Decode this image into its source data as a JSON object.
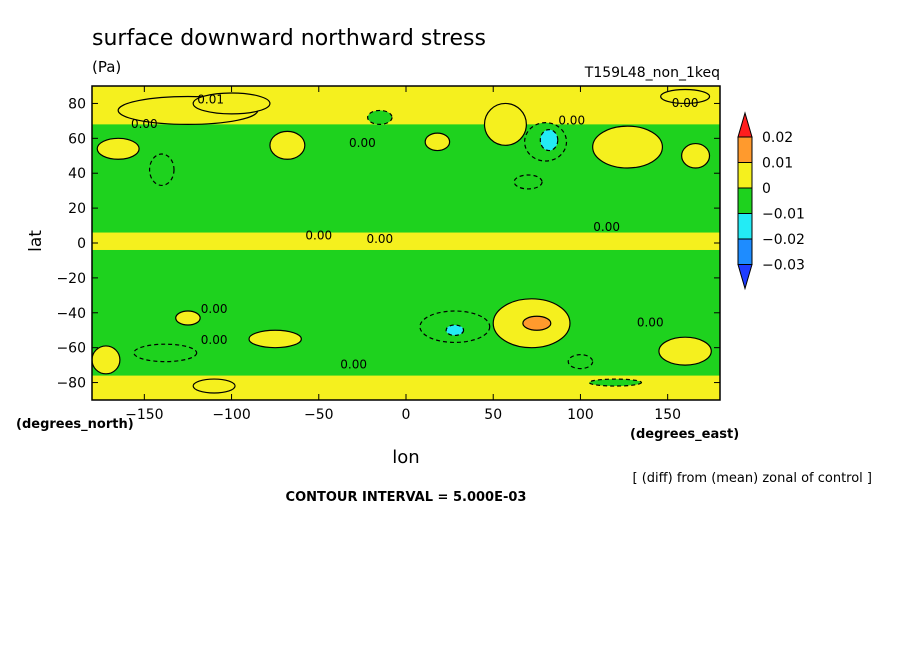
{
  "chart_data": {
    "type": "heatmap",
    "title": "surface downward northward stress",
    "units": "(Pa)",
    "run_label": "T159L48_non_1keq",
    "xlabel": "lon",
    "ylabel": "lat",
    "x_units": "(degrees_east)",
    "y_units": "(degrees_north)",
    "xlim": [
      -180,
      180
    ],
    "ylim": [
      -90,
      90
    ],
    "x_ticks": [
      -150,
      -100,
      -50,
      0,
      50,
      100,
      150
    ],
    "x_tick_labels": [
      "−150",
      "−100",
      "−50",
      "0",
      "50",
      "100",
      "150"
    ],
    "y_ticks": [
      80,
      60,
      40,
      20,
      0,
      -20,
      -40,
      -60,
      -80
    ],
    "y_tick_labels": [
      "80",
      "60",
      "40",
      "20",
      "0",
      "−20",
      "−40",
      "−60",
      "−80"
    ],
    "note": "[ (diff) from (mean) zonal of control ]",
    "contour_interval": "CONTOUR INTERVAL = 5.000E-03",
    "colorbar": {
      "levels": [
        "0.02",
        "0.01",
        "0",
        "−0.01",
        "−0.02",
        "−0.03"
      ],
      "colors": [
        "#ff1e1e",
        "#ff9a2d",
        "#f5f01e",
        "#1ed21e",
        "#23ebf5",
        "#1e8cff",
        "#1e3cff"
      ]
    },
    "contour_labels": [
      {
        "text": "0.01",
        "lon": -112,
        "lat": 80
      },
      {
        "text": "0.00",
        "lon": -150,
        "lat": 66
      },
      {
        "text": "0.00",
        "lon": -25,
        "lat": 55
      },
      {
        "text": "0.00",
        "lon": 95,
        "lat": 68
      },
      {
        "text": "0.00",
        "lon": 160,
        "lat": 78
      },
      {
        "text": "0.00",
        "lon": -50,
        "lat": 2
      },
      {
        "text": "0.00",
        "lon": -15,
        "lat": 0
      },
      {
        "text": "0.00",
        "lon": 115,
        "lat": 7
      },
      {
        "text": "0.00",
        "lon": -110,
        "lat": -40
      },
      {
        "text": "0.00",
        "lon": -110,
        "lat": -58
      },
      {
        "text": "0.00",
        "lon": -30,
        "lat": -72
      },
      {
        "text": "0.00",
        "lon": 140,
        "lat": -48
      }
    ],
    "regions": [
      {
        "value": 0.005,
        "lon": -125,
        "lat": 76,
        "rlon": 40,
        "rlat": 8
      },
      {
        "value": 0.005,
        "lon": -100,
        "lat": 80,
        "rlon": 22,
        "rlat": 6
      },
      {
        "value": 0.005,
        "lon": -165,
        "lat": 54,
        "rlon": 12,
        "rlat": 6
      },
      {
        "value": 0.005,
        "lon": -68,
        "lat": 56,
        "rlon": 10,
        "rlat": 8
      },
      {
        "value": 0.005,
        "lon": 18,
        "lat": 58,
        "rlon": 7,
        "rlat": 5
      },
      {
        "value": 0.005,
        "lon": 57,
        "lat": 68,
        "rlon": 12,
        "rlat": 12
      },
      {
        "value": 0.005,
        "lon": 127,
        "lat": 55,
        "rlon": 20,
        "rlat": 12
      },
      {
        "value": 0.005,
        "lon": 166,
        "lat": 50,
        "rlon": 8,
        "rlat": 7
      },
      {
        "value": 0.005,
        "lon": 160,
        "lat": 84,
        "rlon": 14,
        "rlat": 4
      },
      {
        "value": 0.005,
        "lon": -172,
        "lat": -67,
        "rlon": 8,
        "rlat": 8
      },
      {
        "value": 0.005,
        "lon": -125,
        "lat": -43,
        "rlon": 7,
        "rlat": 4
      },
      {
        "value": 0.005,
        "lon": -75,
        "lat": -55,
        "rlon": 15,
        "rlat": 5
      },
      {
        "value": 0.005,
        "lon": 72,
        "lat": -46,
        "rlon": 22,
        "rlat": 14
      },
      {
        "value": 0.015,
        "lon": 75,
        "lat": -46,
        "rlon": 8,
        "rlat": 4
      },
      {
        "value": 0.005,
        "lon": 160,
        "lat": -62,
        "rlon": 15,
        "rlat": 8
      },
      {
        "value": 0.005,
        "lon": -110,
        "lat": -82,
        "rlon": 12,
        "rlat": 4
      },
      {
        "value": -0.005,
        "lon": -140,
        "lat": 42,
        "rlon": 7,
        "rlat": 9
      },
      {
        "value": -0.005,
        "lon": -15,
        "lat": 72,
        "rlon": 7,
        "rlat": 4
      },
      {
        "value": -0.005,
        "lon": 80,
        "lat": 58,
        "rlon": 12,
        "rlat": 11
      },
      {
        "value": -0.015,
        "lon": 82,
        "lat": 59,
        "rlon": 5,
        "rlat": 6
      },
      {
        "value": -0.005,
        "lon": 70,
        "lat": 35,
        "rlon": 8,
        "rlat": 4
      },
      {
        "value": -0.005,
        "lon": -138,
        "lat": -63,
        "rlon": 18,
        "rlat": 5
      },
      {
        "value": -0.005,
        "lon": 28,
        "lat": -48,
        "rlon": 20,
        "rlat": 9
      },
      {
        "value": -0.015,
        "lon": 28,
        "lat": -50,
        "rlon": 5,
        "rlat": 3
      },
      {
        "value": -0.005,
        "lon": 100,
        "lat": -68,
        "rlon": 7,
        "rlat": 4
      },
      {
        "value": -0.005,
        "lon": 120,
        "lat": -80,
        "rlon": 15,
        "rlat": 2
      }
    ]
  }
}
